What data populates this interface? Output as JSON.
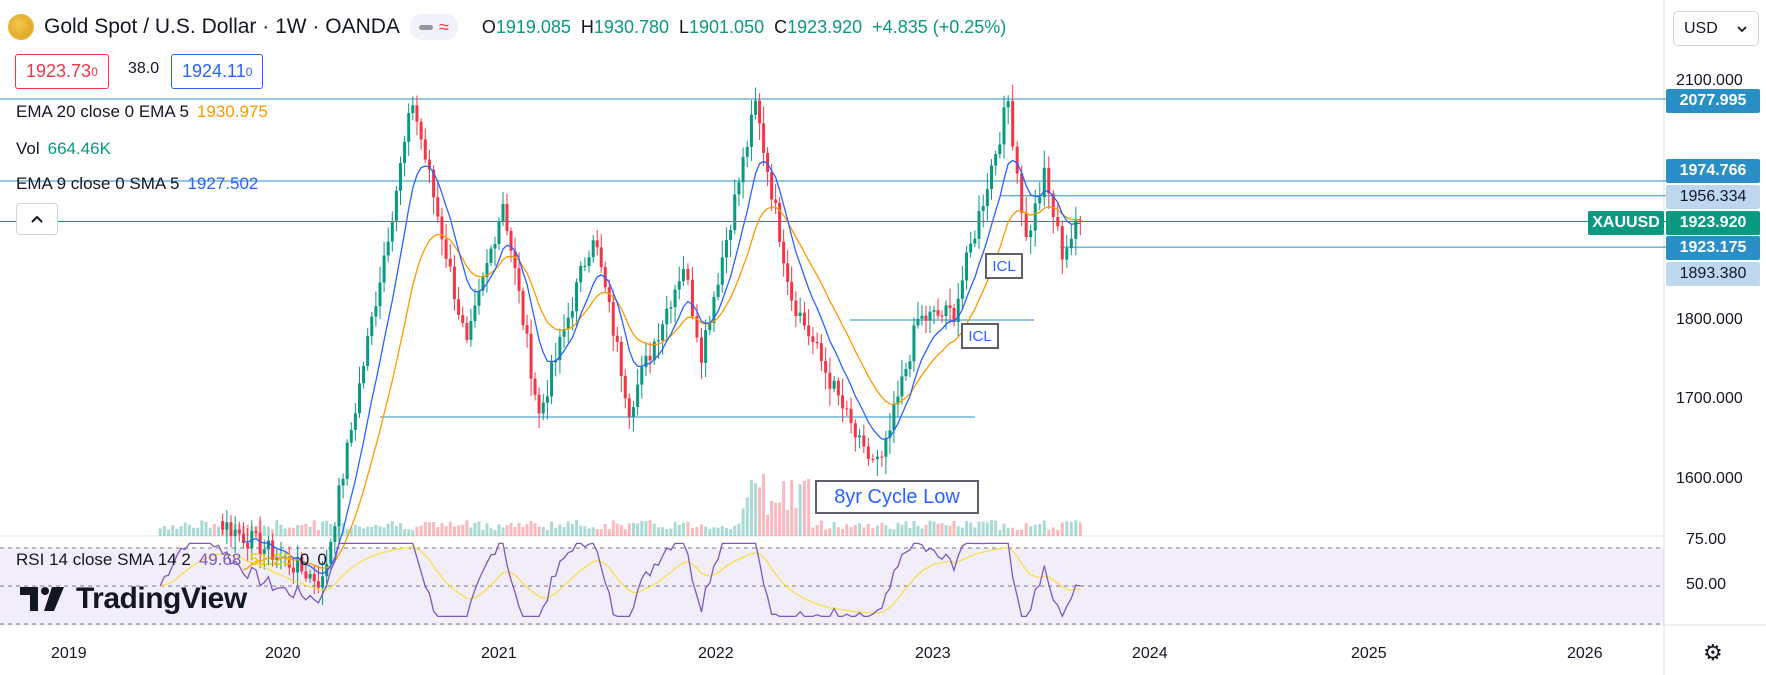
{
  "header": {
    "symbol_title": "Gold Spot / U.S. Dollar · 1W · OANDA",
    "open_label": "O",
    "open": "1919.085",
    "high_label": "H",
    "high": "1930.780",
    "low_label": "L",
    "low": "1901.050",
    "close_label": "C",
    "close": "1923.920",
    "change": "+4.835 (+0.25%)"
  },
  "trade": {
    "sell_price": "1923.73",
    "sell_sup": "0",
    "spread": "38.0",
    "buy_price": "1924.11",
    "buy_sup": "0"
  },
  "indicators": {
    "ema1_label": "EMA 20 close 0 EMA 5",
    "ema1_value": "1930.975",
    "vol_label": "Vol",
    "vol_value": "664.46K",
    "ema2_label": "EMA 9 close 0 SMA 5",
    "ema2_value": "1927.502",
    "rsi_label": "RSI 14 close SMA 14 2",
    "rsi_value": "49.68",
    "rsi_sma_value": "51.23",
    "rsi_extra1": "0",
    "rsi_extra2": "0"
  },
  "currency_select": {
    "value": "USD"
  },
  "price_labels": {
    "level1": "2077.995",
    "level2": "1974.766",
    "level3": "1956.334",
    "symbol": "XAUUSD",
    "last": "1923.920",
    "level4": "1923.175",
    "level5": "1893.380"
  },
  "annotations": {
    "icl_upper": "ICL",
    "icl_lower": "ICL",
    "cycle_low": "8yr Cycle Low"
  },
  "watermark": {
    "text": "TradingView"
  },
  "colors": {
    "up": "#089981",
    "down": "#f23645",
    "ema_fast": "#2962ff",
    "ema_slow": "#ff9800",
    "rsi": "#7e57c2",
    "rsi_sma": "#f7e04b",
    "hline": "#2a8fc7"
  },
  "chart_data": [
    {
      "type": "candlestick",
      "title": "Gold Spot / U.S. Dollar · 1W · OANDA",
      "y_axis": {
        "ticks": [
          1600,
          1700,
          1800,
          2100
        ],
        "range": [
          1540,
          2120
        ]
      },
      "x_axis": {
        "ticks": [
          "2019",
          "2020",
          "2021",
          "2022",
          "2023",
          "2024",
          "2025",
          "2026"
        ]
      },
      "last_price": 1923.92,
      "key_points": [
        {
          "date": "2019-06",
          "price": 1340
        },
        {
          "date": "2019-09",
          "price": 1550
        },
        {
          "date": "2020-03",
          "price": 1470
        },
        {
          "date": "2020-08",
          "price": 2075
        },
        {
          "date": "2020-11",
          "price": 1765
        },
        {
          "date": "2021-01",
          "price": 1950
        },
        {
          "date": "2021-03",
          "price": 1680
        },
        {
          "date": "2021-06",
          "price": 1910
        },
        {
          "date": "2021-08",
          "price": 1690
        },
        {
          "date": "2021-11",
          "price": 1870
        },
        {
          "date": "2021-12",
          "price": 1760
        },
        {
          "date": "2022-03",
          "price": 2070
        },
        {
          "date": "2022-05",
          "price": 1830
        },
        {
          "date": "2022-09",
          "price": 1630
        },
        {
          "date": "2022-10",
          "price": 1620
        },
        {
          "date": "2022-12",
          "price": 1800
        },
        {
          "date": "2023-02",
          "price": 1810
        },
        {
          "date": "2023-05",
          "price": 2075
        },
        {
          "date": "2023-06",
          "price": 1900
        },
        {
          "date": "2023-07",
          "price": 1980
        },
        {
          "date": "2023-08",
          "price": 1885
        },
        {
          "date": "2023-09",
          "price": 1923.92
        }
      ],
      "horizontal_levels": [
        2077.995,
        1974.766,
        1956.334,
        1923.92,
        1923.175,
        1893.38,
        1800,
        1678
      ]
    },
    {
      "type": "line",
      "title": "RSI 14 close SMA 14 2",
      "y_axis": {
        "ticks": [
          50.0,
          75.0
        ],
        "ticks_labels": [
          "50.00",
          "75.00"
        ]
      },
      "series": [
        {
          "name": "RSI",
          "last": 49.68
        },
        {
          "name": "SMA",
          "last": 51.23
        }
      ]
    }
  ],
  "yticks": [
    "2100.000",
    "1800.000",
    "1700.000",
    "1600.000"
  ],
  "rsi_ticks": [
    "75.00",
    "50.00"
  ],
  "xticks": [
    "2019",
    "2020",
    "2021",
    "2022",
    "2023",
    "2024",
    "2025",
    "2026"
  ]
}
